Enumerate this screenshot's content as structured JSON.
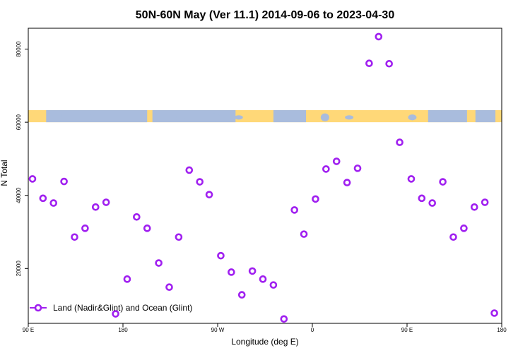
{
  "chart_data": {
    "type": "scatter",
    "title": "50N-60N May (Ver 11.1)   2014-09-06 to 2023-04-30",
    "xlabel": "Longitude (deg E)",
    "ylabel": "N Total",
    "x_tick_positions": [
      90,
      180,
      270,
      360,
      450,
      540
    ],
    "x_tick_labels": [
      "90 E",
      "180",
      "90 W",
      "0",
      "90 E",
      "180"
    ],
    "y_ticks": [
      20000,
      40000,
      60000,
      80000
    ],
    "xlim": [
      90,
      540
    ],
    "ylim": [
      5000,
      85700
    ],
    "map_band": {
      "lat_range": "50N-60N",
      "y_range": [
        60000,
        63300
      ],
      "ocean_color": "#a9bcdd",
      "land_color": "#ffd878"
    },
    "series": [
      {
        "name": "Land (Nadir&Glint) and Ocean (Glint)",
        "color": "#a020f0",
        "marker": "circle-open",
        "x": [
          94,
          104,
          114,
          124,
          134,
          144,
          154,
          164,
          173,
          184,
          193,
          203,
          214,
          224,
          233,
          243,
          253,
          262,
          273,
          283,
          293,
          303,
          313,
          323,
          333,
          343,
          352,
          363,
          373,
          383,
          393,
          403,
          414,
          423,
          433,
          443,
          454,
          464,
          474,
          484,
          494,
          504,
          514,
          524,
          533
        ],
        "y": [
          44500,
          39200,
          37900,
          43800,
          28600,
          31000,
          36800,
          38100,
          7600,
          17100,
          34100,
          31000,
          21500,
          14900,
          28600,
          46900,
          43700,
          40200,
          23500,
          19000,
          12800,
          19300,
          17100,
          15500,
          6200,
          36000,
          29400,
          39000,
          47200,
          49300,
          43500,
          47400,
          76100,
          83400,
          76000,
          54500,
          44500,
          39200,
          37900,
          43700,
          28600,
          31000,
          36800,
          38100,
          7800
        ]
      }
    ],
    "legend": {
      "position": "bottom-left",
      "entries": [
        "Land (Nadir&Glint) and Ocean (Glint)"
      ]
    },
    "grid": false
  }
}
